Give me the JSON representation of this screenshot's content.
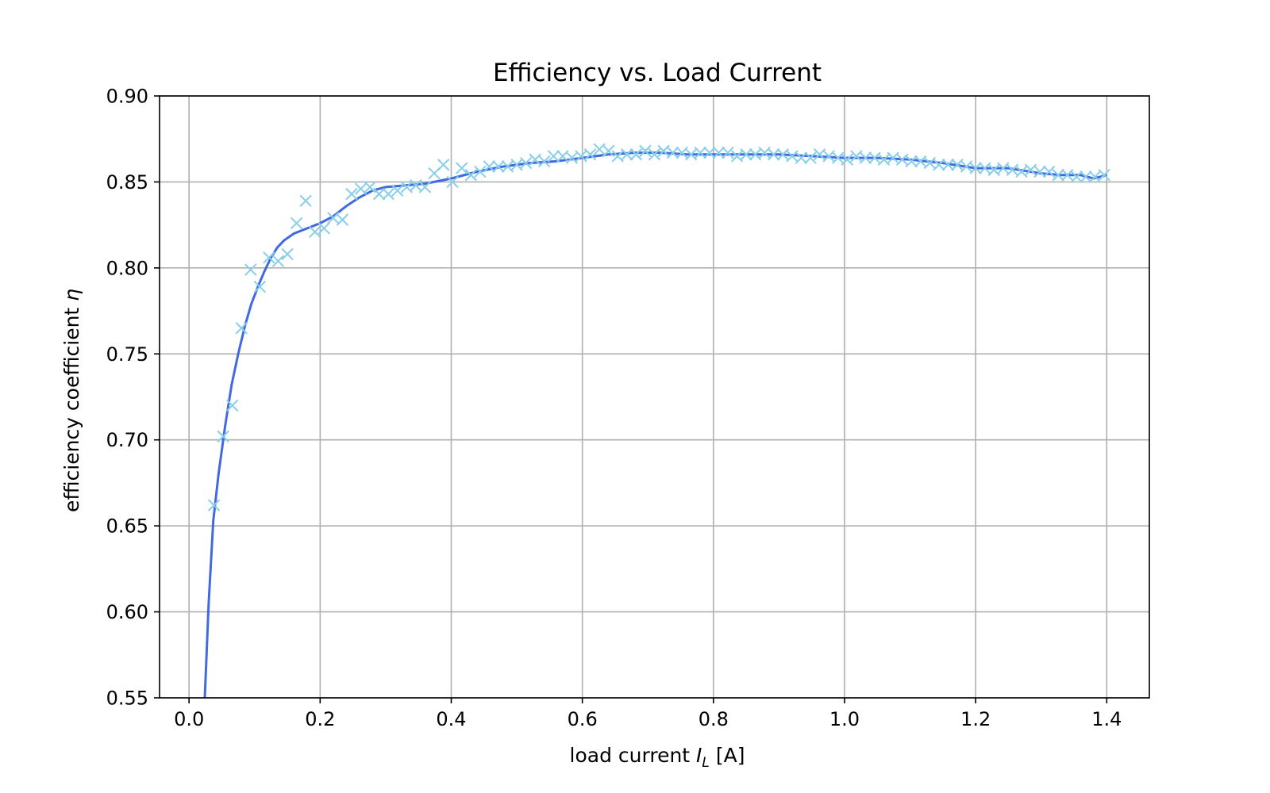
{
  "chart_data": {
    "type": "scatter",
    "title": "Efficiency vs. Load Current",
    "xlabel": {
      "pre": "load current ",
      "var": "I",
      "sub": "L",
      "post": " [A]"
    },
    "ylabel": {
      "pre": "efficiency coefficient ",
      "var": "η"
    },
    "xlim": [
      -0.045,
      1.465
    ],
    "ylim": [
      0.55,
      0.9
    ],
    "xticks": [
      "0.0",
      "0.2",
      "0.4",
      "0.6",
      "0.8",
      "1.0",
      "1.2",
      "1.4"
    ],
    "yticks": [
      "0.55",
      "0.60",
      "0.65",
      "0.70",
      "0.75",
      "0.80",
      "0.85",
      "0.90"
    ],
    "grid": true,
    "colors": {
      "markers": "#87ceeb",
      "fit": "#4169e1"
    },
    "series": [
      {
        "kind": "measured",
        "marker": "x",
        "points": [
          [
            0.038,
            0.662
          ],
          [
            0.052,
            0.702
          ],
          [
            0.066,
            0.72
          ],
          [
            0.08,
            0.765
          ],
          [
            0.094,
            0.799
          ],
          [
            0.108,
            0.789
          ],
          [
            0.122,
            0.806
          ],
          [
            0.136,
            0.804
          ],
          [
            0.15,
            0.808
          ],
          [
            0.164,
            0.826
          ],
          [
            0.178,
            0.839
          ],
          [
            0.192,
            0.821
          ],
          [
            0.206,
            0.823
          ],
          [
            0.22,
            0.829
          ],
          [
            0.234,
            0.828
          ],
          [
            0.248,
            0.843
          ],
          [
            0.262,
            0.846
          ],
          [
            0.276,
            0.847
          ],
          [
            0.29,
            0.843
          ],
          [
            0.304,
            0.843
          ],
          [
            0.318,
            0.845
          ],
          [
            0.332,
            0.847
          ],
          [
            0.346,
            0.848
          ],
          [
            0.36,
            0.847
          ],
          [
            0.374,
            0.855
          ],
          [
            0.388,
            0.86
          ],
          [
            0.402,
            0.85
          ],
          [
            0.416,
            0.858
          ],
          [
            0.43,
            0.854
          ],
          [
            0.444,
            0.856
          ],
          [
            0.458,
            0.859
          ],
          [
            0.472,
            0.859
          ],
          [
            0.486,
            0.859
          ],
          [
            0.5,
            0.86
          ],
          [
            0.514,
            0.861
          ],
          [
            0.528,
            0.863
          ],
          [
            0.542,
            0.862
          ],
          [
            0.556,
            0.865
          ],
          [
            0.57,
            0.865
          ],
          [
            0.584,
            0.864
          ],
          [
            0.598,
            0.865
          ],
          [
            0.612,
            0.866
          ],
          [
            0.626,
            0.869
          ],
          [
            0.64,
            0.868
          ],
          [
            0.654,
            0.865
          ],
          [
            0.668,
            0.866
          ],
          [
            0.682,
            0.866
          ],
          [
            0.696,
            0.868
          ],
          [
            0.71,
            0.866
          ],
          [
            0.724,
            0.868
          ],
          [
            0.738,
            0.867
          ],
          [
            0.752,
            0.867
          ],
          [
            0.766,
            0.866
          ],
          [
            0.78,
            0.867
          ],
          [
            0.794,
            0.867
          ],
          [
            0.808,
            0.867
          ],
          [
            0.822,
            0.867
          ],
          [
            0.836,
            0.865
          ],
          [
            0.85,
            0.866
          ],
          [
            0.864,
            0.866
          ],
          [
            0.878,
            0.867
          ],
          [
            0.892,
            0.866
          ],
          [
            0.906,
            0.866
          ],
          [
            0.92,
            0.865
          ],
          [
            0.934,
            0.864
          ],
          [
            0.948,
            0.864
          ],
          [
            0.962,
            0.866
          ],
          [
            0.976,
            0.865
          ],
          [
            0.99,
            0.864
          ],
          [
            1.004,
            0.863
          ],
          [
            1.018,
            0.865
          ],
          [
            1.032,
            0.864
          ],
          [
            1.046,
            0.864
          ],
          [
            1.06,
            0.863
          ],
          [
            1.074,
            0.864
          ],
          [
            1.088,
            0.863
          ],
          [
            1.102,
            0.862
          ],
          [
            1.116,
            0.862
          ],
          [
            1.13,
            0.861
          ],
          [
            1.144,
            0.86
          ],
          [
            1.158,
            0.86
          ],
          [
            1.172,
            0.86
          ],
          [
            1.186,
            0.859
          ],
          [
            1.2,
            0.858
          ],
          [
            1.214,
            0.858
          ],
          [
            1.228,
            0.857
          ],
          [
            1.242,
            0.858
          ],
          [
            1.256,
            0.857
          ],
          [
            1.27,
            0.856
          ],
          [
            1.284,
            0.857
          ],
          [
            1.298,
            0.856
          ],
          [
            1.312,
            0.856
          ],
          [
            1.326,
            0.854
          ],
          [
            1.34,
            0.854
          ],
          [
            1.354,
            0.853
          ],
          [
            1.368,
            0.853
          ],
          [
            1.382,
            0.853
          ],
          [
            1.396,
            0.854
          ]
        ]
      },
      {
        "kind": "fit",
        "points": [
          [
            0.024,
            0.55
          ],
          [
            0.03,
            0.605
          ],
          [
            0.037,
            0.653
          ],
          [
            0.045,
            0.68
          ],
          [
            0.055,
            0.708
          ],
          [
            0.065,
            0.732
          ],
          [
            0.075,
            0.75
          ],
          [
            0.085,
            0.766
          ],
          [
            0.095,
            0.779
          ],
          [
            0.105,
            0.789
          ],
          [
            0.115,
            0.798
          ],
          [
            0.125,
            0.806
          ],
          [
            0.135,
            0.812
          ],
          [
            0.145,
            0.816
          ],
          [
            0.16,
            0.82
          ],
          [
            0.18,
            0.823
          ],
          [
            0.2,
            0.826
          ],
          [
            0.22,
            0.83
          ],
          [
            0.24,
            0.836
          ],
          [
            0.26,
            0.841
          ],
          [
            0.28,
            0.845
          ],
          [
            0.3,
            0.847
          ],
          [
            0.33,
            0.848
          ],
          [
            0.36,
            0.849
          ],
          [
            0.4,
            0.852
          ],
          [
            0.44,
            0.856
          ],
          [
            0.48,
            0.859
          ],
          [
            0.52,
            0.861
          ],
          [
            0.56,
            0.862
          ],
          [
            0.6,
            0.864
          ],
          [
            0.64,
            0.866
          ],
          [
            0.68,
            0.867
          ],
          [
            0.72,
            0.867
          ],
          [
            0.76,
            0.866
          ],
          [
            0.8,
            0.866
          ],
          [
            0.85,
            0.866
          ],
          [
            0.9,
            0.866
          ],
          [
            0.95,
            0.865
          ],
          [
            1.0,
            0.864
          ],
          [
            1.05,
            0.864
          ],
          [
            1.1,
            0.863
          ],
          [
            1.15,
            0.861
          ],
          [
            1.2,
            0.858
          ],
          [
            1.25,
            0.858
          ],
          [
            1.3,
            0.855
          ],
          [
            1.33,
            0.854
          ],
          [
            1.36,
            0.854
          ],
          [
            1.38,
            0.852
          ],
          [
            1.4,
            0.854
          ]
        ]
      }
    ]
  }
}
